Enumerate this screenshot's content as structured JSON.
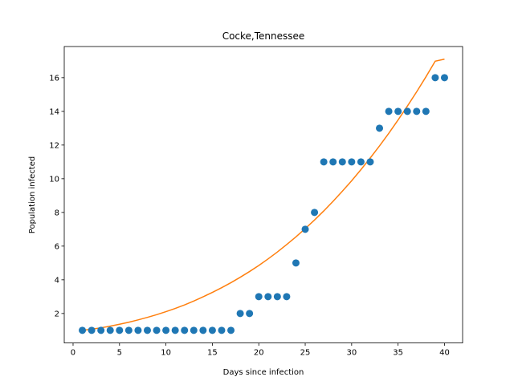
{
  "chart_data": {
    "type": "scatter",
    "title": "Cocke,Tennessee",
    "xlabel": "Days since infection",
    "ylabel": "Population infected",
    "xlim": [
      -0.95,
      41.95
    ],
    "ylim": [
      0.25,
      17.85
    ],
    "xticks": [
      0,
      5,
      10,
      15,
      20,
      25,
      30,
      35,
      40
    ],
    "yticks": [
      2,
      4,
      6,
      8,
      10,
      12,
      14,
      16
    ],
    "grid": false,
    "legend": "none",
    "series": [
      {
        "kind": "scatter",
        "color": "#1f77b4",
        "x": [
          1,
          2,
          3,
          4,
          5,
          6,
          7,
          8,
          9,
          10,
          11,
          12,
          13,
          14,
          15,
          16,
          17,
          18,
          19,
          20,
          21,
          22,
          23,
          24,
          25,
          26,
          27,
          28,
          29,
          30,
          31,
          32,
          33,
          34,
          35,
          36,
          37,
          38,
          39,
          40
        ],
        "y": [
          1,
          1,
          1,
          1,
          1,
          1,
          1,
          1,
          1,
          1,
          1,
          1,
          1,
          1,
          1,
          1,
          1,
          2,
          2,
          3,
          3,
          3,
          3,
          5,
          7,
          8,
          11,
          11,
          11,
          11,
          11,
          11,
          13,
          14,
          14,
          14,
          14,
          14,
          16,
          16
        ]
      },
      {
        "kind": "line",
        "color": "#ff7f0e",
        "x": [
          1,
          2,
          3,
          4,
          5,
          6,
          7,
          8,
          9,
          10,
          11,
          12,
          13,
          14,
          15,
          16,
          17,
          18,
          19,
          20,
          21,
          22,
          23,
          24,
          25,
          26,
          27,
          28,
          29,
          30,
          31,
          32,
          33,
          34,
          35,
          36,
          37,
          38,
          39,
          40
        ],
        "y": [
          1.0,
          1.07,
          1.15,
          1.25,
          1.36,
          1.48,
          1.62,
          1.77,
          1.93,
          2.11,
          2.3,
          2.51,
          2.74,
          2.99,
          3.25,
          3.53,
          3.83,
          4.15,
          4.49,
          4.85,
          5.24,
          5.65,
          6.09,
          6.55,
          7.04,
          7.55,
          8.09,
          8.66,
          9.26,
          9.88,
          10.54,
          11.23,
          11.95,
          12.7,
          13.49,
          14.31,
          15.16,
          16.05,
          16.98,
          17.1
        ]
      }
    ]
  }
}
